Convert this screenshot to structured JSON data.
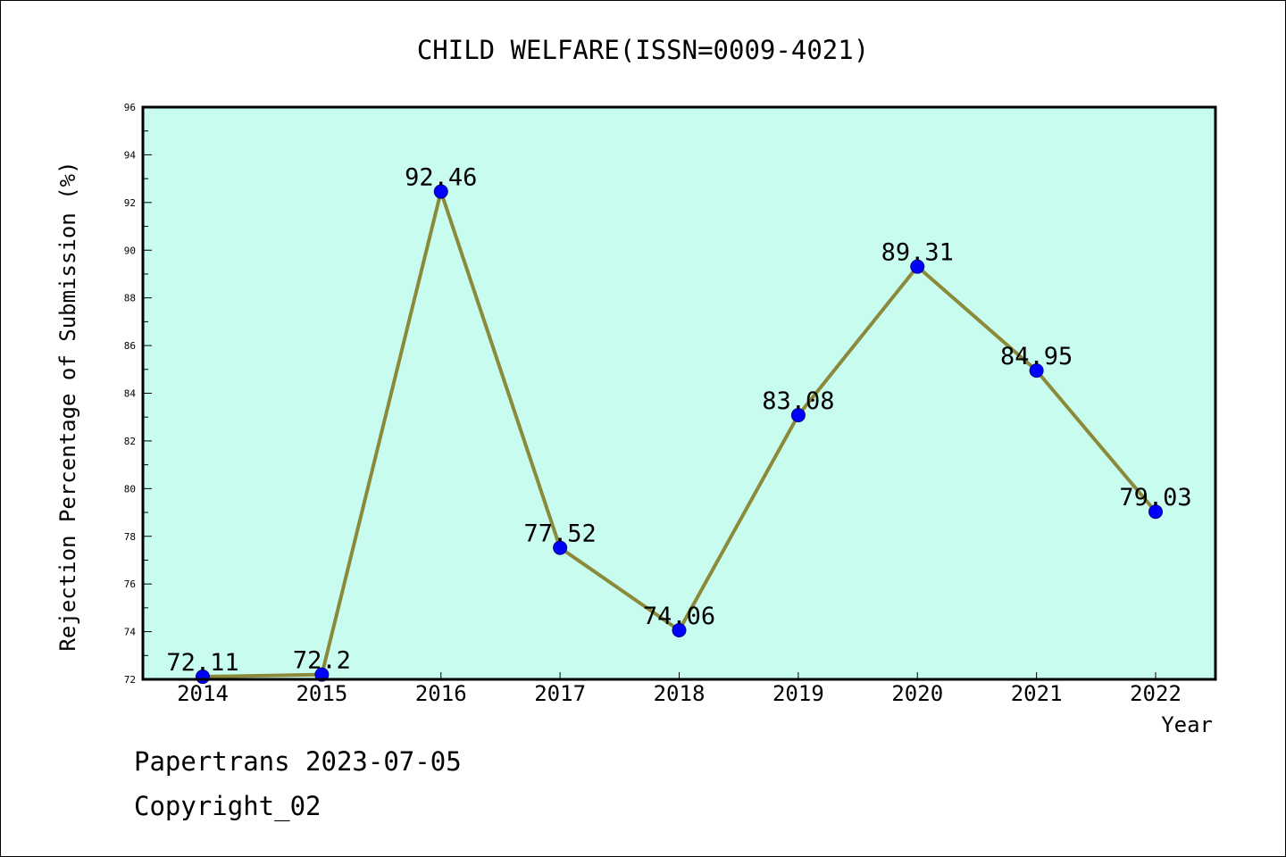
{
  "chart_data": {
    "type": "line",
    "title": "CHILD WELFARE(ISSN=0009-4021)",
    "xlabel": "Year",
    "ylabel": "Rejection Percentage of Submission (%)",
    "categories": [
      "2014",
      "2015",
      "2016",
      "2017",
      "2018",
      "2019",
      "2020",
      "2021",
      "2022"
    ],
    "series": [
      {
        "values": [
          72.11,
          72.2,
          92.46,
          77.52,
          74.06,
          83.08,
          89.31,
          84.95,
          79.03
        ],
        "labels": [
          "72.11",
          "72.2",
          "92.46",
          "77.52",
          "74.06",
          "83.08",
          "89.31",
          "84.95",
          "79.03"
        ]
      }
    ],
    "ylim": [
      72,
      96
    ],
    "yticks": [
      "72",
      "74",
      "76",
      "78",
      "80",
      "82",
      "84",
      "86",
      "88",
      "90",
      "92",
      "94",
      "96"
    ],
    "grid": false,
    "colors": {
      "plot_background": "#c8fcee",
      "line": "#8b8a3a",
      "marker": "#0000ff"
    }
  },
  "footer": {
    "line1": "Papertrans 2023-07-05",
    "line2": "Copyright_02"
  }
}
